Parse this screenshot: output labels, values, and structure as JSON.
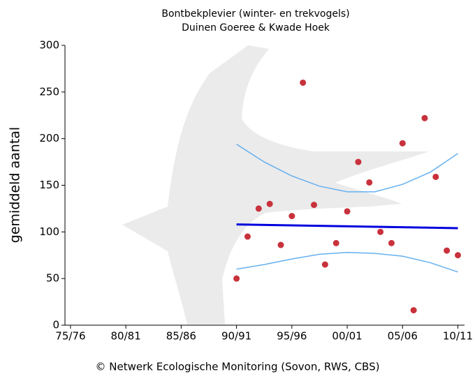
{
  "chart_data": {
    "type": "scatter",
    "title": "Bontbekplevier (winter- en trekvogels)",
    "subtitle": "Duinen Goeree & Kwade Hoek",
    "y_label": "gemiddeld aantal",
    "footer": "© Netwerk Ecologische Monitoring (Sovon, RWS, CBS)",
    "xlim": [
      1974.5,
      2010.6
    ],
    "xticks": [
      {
        "value": 1975,
        "label": "75/76"
      },
      {
        "value": 1980,
        "label": "80/81"
      },
      {
        "value": 1985,
        "label": "85/86"
      },
      {
        "value": 1990,
        "label": "90/91"
      },
      {
        "value": 1995,
        "label": "95/96"
      },
      {
        "value": 2000,
        "label": "00/01"
      },
      {
        "value": 2005,
        "label": "05/06"
      },
      {
        "value": 2010,
        "label": "10/11"
      }
    ],
    "ylim": [
      0,
      300
    ],
    "yticks": [
      0,
      50,
      100,
      150,
      200,
      250,
      300
    ],
    "series": [
      {
        "mode": "markers",
        "color": "#c8323c",
        "x": [
          1990,
          1991,
          1992,
          1993,
          1994,
          1995,
          1996,
          1997,
          1998,
          1999,
          2000,
          2001,
          2002,
          2003,
          2004,
          2005,
          2006,
          2007,
          2008,
          2009,
          2010
        ],
        "values": [
          50,
          95,
          125,
          130,
          86,
          117,
          260,
          129,
          65,
          88,
          122,
          175,
          153,
          100,
          88,
          195,
          16,
          222,
          159,
          80,
          75
        ]
      },
      {
        "mode": "lines",
        "width": 3,
        "color": "#0000dd",
        "x": [
          1990,
          2010
        ],
        "values": [
          108,
          104
        ]
      },
      {
        "mode": "lines",
        "width": 1.5,
        "color": "#66b0f0",
        "x": [
          1990,
          1992.5,
          1995,
          1997.5,
          2000,
          2002.5,
          2005,
          2007.5,
          2010
        ],
        "values": [
          194,
          175,
          160,
          149,
          143,
          143,
          151,
          164,
          184
        ]
      },
      {
        "mode": "lines",
        "width": 1.5,
        "color": "#66b0f0",
        "x": [
          1990,
          1992.5,
          1995,
          1997.5,
          2000,
          2002.5,
          2005,
          2007.5,
          2010
        ],
        "values": [
          60,
          65,
          71,
          76,
          78,
          77,
          74,
          67,
          57
        ]
      }
    ]
  }
}
